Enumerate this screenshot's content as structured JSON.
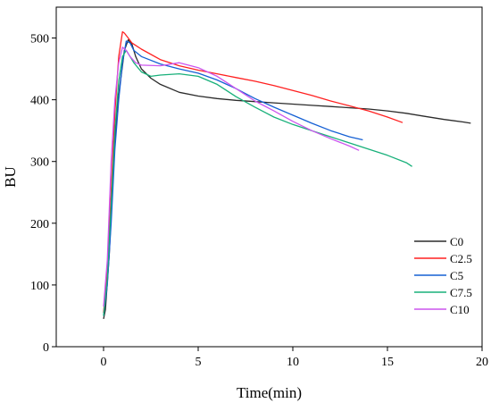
{
  "chart_data": {
    "type": "line",
    "title": "",
    "xlabel": "Time(min)",
    "ylabel": "BU",
    "xlim": [
      -2.5,
      20
    ],
    "ylim": [
      0,
      550
    ],
    "xticks": [
      0,
      5,
      10,
      15,
      20
    ],
    "yticks": [
      0,
      100,
      200,
      300,
      400,
      500
    ],
    "grid": false,
    "legend_position": "right",
    "series": [
      {
        "name": "C0",
        "color": "#2b2b2b",
        "points": [
          [
            0,
            45
          ],
          [
            0.1,
            60
          ],
          [
            0.3,
            150
          ],
          [
            0.5,
            280
          ],
          [
            0.7,
            380
          ],
          [
            0.85,
            420
          ],
          [
            1.0,
            455
          ],
          [
            1.1,
            480
          ],
          [
            1.3,
            497
          ],
          [
            1.5,
            490
          ],
          [
            1.7,
            470
          ],
          [
            2.0,
            450
          ],
          [
            2.5,
            435
          ],
          [
            3.0,
            425
          ],
          [
            4.0,
            412
          ],
          [
            5.0,
            406
          ],
          [
            6.0,
            402
          ],
          [
            7.0,
            399
          ],
          [
            8.0,
            397
          ],
          [
            9.0,
            395
          ],
          [
            10.0,
            393
          ],
          [
            11.0,
            391
          ],
          [
            12.0,
            389
          ],
          [
            13.0,
            387
          ],
          [
            14.0,
            385
          ],
          [
            15.0,
            382
          ],
          [
            16.0,
            378
          ],
          [
            17.0,
            373
          ],
          [
            18.0,
            368
          ],
          [
            19.0,
            364
          ],
          [
            19.4,
            362
          ]
        ]
      },
      {
        "name": "C2.5",
        "color": "#ff2020",
        "points": [
          [
            0,
            55
          ],
          [
            0.2,
            120
          ],
          [
            0.4,
            250
          ],
          [
            0.6,
            380
          ],
          [
            0.8,
            470
          ],
          [
            1.0,
            510
          ],
          [
            1.1,
            508
          ],
          [
            1.3,
            500
          ],
          [
            1.5,
            492
          ],
          [
            2.0,
            482
          ],
          [
            3.0,
            465
          ],
          [
            4.0,
            455
          ],
          [
            5.0,
            448
          ],
          [
            6.0,
            442
          ],
          [
            7.0,
            436
          ],
          [
            8.0,
            430
          ],
          [
            9.0,
            423
          ],
          [
            10.0,
            415
          ],
          [
            11.0,
            407
          ],
          [
            12.0,
            398
          ],
          [
            13.0,
            390
          ],
          [
            14.0,
            382
          ],
          [
            15.0,
            372
          ],
          [
            15.8,
            363
          ]
        ]
      },
      {
        "name": "C5",
        "color": "#1560d4",
        "points": [
          [
            0,
            50
          ],
          [
            0.2,
            100
          ],
          [
            0.4,
            200
          ],
          [
            0.6,
            320
          ],
          [
            0.8,
            400
          ],
          [
            1.0,
            460
          ],
          [
            1.2,
            495
          ],
          [
            1.4,
            492
          ],
          [
            1.6,
            480
          ],
          [
            2.0,
            470
          ],
          [
            3.0,
            458
          ],
          [
            4.0,
            450
          ],
          [
            5.0,
            443
          ],
          [
            6.0,
            432
          ],
          [
            7.0,
            418
          ],
          [
            8.0,
            402
          ],
          [
            9.0,
            388
          ],
          [
            10.0,
            375
          ],
          [
            11.0,
            362
          ],
          [
            12.0,
            350
          ],
          [
            13.0,
            340
          ],
          [
            13.7,
            335
          ]
        ]
      },
      {
        "name": "C7.5",
        "color": "#18b07a",
        "points": [
          [
            0,
            50
          ],
          [
            0.2,
            110
          ],
          [
            0.4,
            230
          ],
          [
            0.6,
            350
          ],
          [
            0.8,
            430
          ],
          [
            1.0,
            470
          ],
          [
            1.2,
            480
          ],
          [
            1.4,
            470
          ],
          [
            1.6,
            460
          ],
          [
            2.0,
            445
          ],
          [
            2.5,
            438
          ],
          [
            3.0,
            440
          ],
          [
            4.0,
            442
          ],
          [
            5.0,
            438
          ],
          [
            6.0,
            425
          ],
          [
            7.0,
            405
          ],
          [
            8.0,
            388
          ],
          [
            9.0,
            372
          ],
          [
            10.0,
            360
          ],
          [
            11.0,
            350
          ],
          [
            12.0,
            340
          ],
          [
            13.0,
            330
          ],
          [
            14.0,
            320
          ],
          [
            15.0,
            310
          ],
          [
            16.0,
            298
          ],
          [
            16.3,
            292
          ]
        ]
      },
      {
        "name": "C10",
        "color": "#cc55ee",
        "points": [
          [
            0,
            65
          ],
          [
            0.2,
            140
          ],
          [
            0.4,
            300
          ],
          [
            0.6,
            400
          ],
          [
            0.8,
            460
          ],
          [
            1.0,
            485
          ],
          [
            1.2,
            480
          ],
          [
            1.4,
            470
          ],
          [
            1.7,
            460
          ],
          [
            2.0,
            456
          ],
          [
            3.0,
            455
          ],
          [
            4.0,
            460
          ],
          [
            5.0,
            452
          ],
          [
            6.0,
            438
          ],
          [
            7.0,
            418
          ],
          [
            8.0,
            398
          ],
          [
            9.0,
            382
          ],
          [
            10.0,
            365
          ],
          [
            11.0,
            350
          ],
          [
            12.0,
            337
          ],
          [
            13.0,
            325
          ],
          [
            13.5,
            318
          ]
        ]
      }
    ]
  }
}
